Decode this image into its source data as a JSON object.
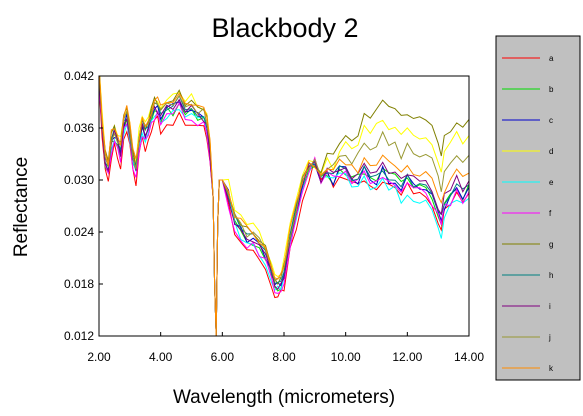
{
  "chart_data": {
    "type": "line",
    "title": "Blackbody 2",
    "xlabel": "Wavelength (micrometers)",
    "ylabel": "Reflectance",
    "xlim": [
      2.0,
      14.0
    ],
    "ylim": [
      0.012,
      0.042
    ],
    "xticks": [
      "2.00",
      "4.00",
      "6.00",
      "8.00",
      "10.00",
      "12.00",
      "14.00"
    ],
    "yticks": [
      "0.012",
      "0.018",
      "0.024",
      "0.030",
      "0.036",
      "0.042"
    ],
    "grid": false,
    "legend_position": "right",
    "x": [
      2.0,
      2.1,
      2.2,
      2.3,
      2.4,
      2.5,
      2.6,
      2.7,
      2.8,
      2.9,
      3.0,
      3.1,
      3.2,
      3.3,
      3.4,
      3.5,
      3.6,
      3.7,
      3.8,
      3.9,
      4.0,
      4.2,
      4.4,
      4.6,
      4.8,
      5.0,
      5.2,
      5.4,
      5.5,
      5.6,
      5.7,
      5.75,
      5.8,
      5.85,
      5.9,
      6.0,
      6.2,
      6.4,
      6.6,
      6.8,
      7.0,
      7.2,
      7.4,
      7.6,
      7.7,
      7.8,
      7.9,
      8.0,
      8.2,
      8.4,
      8.6,
      8.8,
      9.0,
      9.2,
      9.4,
      9.6,
      9.8,
      10.0,
      10.2,
      10.4,
      10.6,
      10.8,
      11.0,
      11.2,
      11.4,
      11.6,
      11.8,
      12.0,
      12.2,
      12.4,
      12.6,
      12.8,
      13.0,
      13.1,
      13.2,
      13.4,
      13.6,
      13.8,
      14.0
    ],
    "base": [
      0.042,
      0.036,
      0.032,
      0.031,
      0.034,
      0.035,
      0.034,
      0.033,
      0.036,
      0.037,
      0.035,
      0.032,
      0.031,
      0.034,
      0.036,
      0.035,
      0.036,
      0.037,
      0.038,
      0.038,
      0.037,
      0.038,
      0.038,
      0.039,
      0.038,
      0.038,
      0.037,
      0.037,
      0.036,
      0.033,
      0.028,
      0.018,
      0.012,
      0.025,
      0.03,
      0.03,
      0.028,
      0.025,
      0.024,
      0.023,
      0.023,
      0.022,
      0.021,
      0.019,
      0.018,
      0.0175,
      0.018,
      0.019,
      0.023,
      0.026,
      0.029,
      0.031,
      0.032,
      0.03,
      0.031,
      0.03,
      0.031,
      0.031,
      0.03,
      0.03,
      0.031,
      0.03,
      0.03,
      0.031,
      0.03,
      0.03,
      0.029,
      0.03,
      0.029,
      0.029,
      0.029,
      0.028,
      0.026,
      0.025,
      0.027,
      0.028,
      0.029,
      0.028,
      0.029
    ],
    "series": [
      {
        "name": "a",
        "color": "#ff0000",
        "offsets": {
          "early": -0.0012,
          "late": -0.0008
        }
      },
      {
        "name": "b",
        "color": "#00dd00",
        "offsets": {
          "early": 0.0,
          "late": 0.0003
        }
      },
      {
        "name": "c",
        "color": "#0000cc",
        "offsets": {
          "early": 0.0003,
          "late": 0.0
        }
      },
      {
        "name": "d",
        "color": "#ffff00",
        "offsets": {
          "early": 0.0015,
          "late": 0.006
        }
      },
      {
        "name": "e",
        "color": "#00ffff",
        "offsets": {
          "early": -0.0003,
          "late": -0.0012
        }
      },
      {
        "name": "f",
        "color": "#ff00ff",
        "offsets": {
          "early": -0.0006,
          "late": -0.0004
        }
      },
      {
        "name": "g",
        "color": "#808000",
        "offsets": {
          "early": 0.001,
          "late": 0.008
        }
      },
      {
        "name": "h",
        "color": "#008080",
        "offsets": {
          "early": 0.0005,
          "late": 0.0005
        }
      },
      {
        "name": "i",
        "color": "#800080",
        "offsets": {
          "early": 0.0002,
          "late": 0.001
        }
      },
      {
        "name": "j",
        "color": "#999933",
        "offsets": {
          "early": 0.0008,
          "late": 0.004
        }
      },
      {
        "name": "k",
        "color": "#ff8c00",
        "offsets": {
          "early": 0.0012,
          "late": 0.002
        }
      }
    ]
  }
}
